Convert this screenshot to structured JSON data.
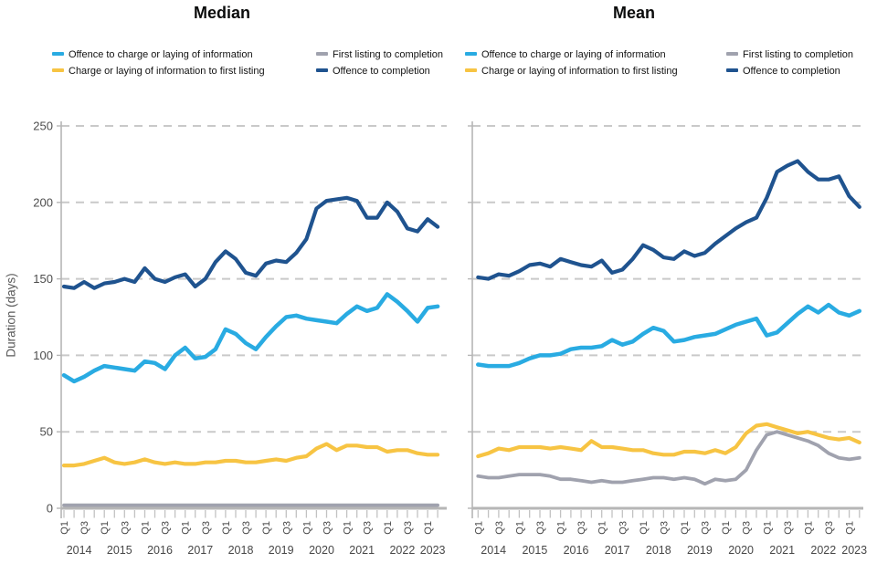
{
  "titles": {
    "left": "Median",
    "right": "Mean"
  },
  "y_axis": {
    "label": "Duration (days)",
    "ticks": [
      0,
      50,
      100,
      150,
      200,
      250
    ],
    "min": 0,
    "max": 250
  },
  "x_axis": {
    "years": [
      "2014",
      "2015",
      "2016",
      "2017",
      "2018",
      "2019",
      "2020",
      "2021",
      "2022",
      "2023"
    ],
    "quarter_tick_labels": [
      "Q1",
      "Q3"
    ],
    "n_points": 38,
    "start": "2014 Q1",
    "end": "2023 Q2"
  },
  "legend": {
    "items": [
      {
        "label": "Offence to charge or laying of information",
        "color": "#29abe2"
      },
      {
        "label": "Charge or laying of information to first listing",
        "color": "#f7c443"
      },
      {
        "label": "First listing to completion",
        "color": "#a0a2ae"
      },
      {
        "label": "Offence to completion",
        "color": "#1f538f"
      }
    ]
  },
  "colors": {
    "gridline": "#c9c9c9",
    "axis": "#b6b6b6",
    "tick": "#c2c2c2",
    "title_text": "#0b0c0c",
    "tick_text": "#474747"
  },
  "chart_data": [
    {
      "panel": "Median",
      "type": "line",
      "ylabel": "Duration (days)",
      "ylim": [
        0,
        250
      ],
      "x": "Quarterly, 2014 Q1 to 2023 Q2",
      "series": [
        {
          "name": "Offence to charge or laying of information",
          "color": "#29abe2",
          "values": [
            87,
            83,
            86,
            90,
            93,
            92,
            91,
            90,
            96,
            95,
            91,
            100,
            105,
            98,
            99,
            104,
            117,
            114,
            108,
            104,
            112,
            119,
            125,
            126,
            124,
            123,
            122,
            121,
            127,
            132,
            129,
            131,
            140,
            135,
            129,
            122,
            131,
            132
          ]
        },
        {
          "name": "Charge or laying of information to first listing",
          "color": "#f7c443",
          "values": [
            28,
            28,
            29,
            31,
            33,
            30,
            29,
            30,
            32,
            30,
            29,
            30,
            29,
            29,
            30,
            30,
            31,
            31,
            30,
            30,
            31,
            32,
            31,
            33,
            34,
            39,
            42,
            38,
            41,
            41,
            40,
            40,
            37,
            38,
            38,
            36,
            35,
            35
          ]
        },
        {
          "name": "First listing to completion",
          "color": "#a0a2ae",
          "values": [
            2,
            2,
            2,
            2,
            2,
            2,
            2,
            2,
            2,
            2,
            2,
            2,
            2,
            2,
            2,
            2,
            2,
            2,
            2,
            2,
            2,
            2,
            2,
            2,
            2,
            2,
            2,
            2,
            2,
            2,
            2,
            2,
            2,
            2,
            2,
            2,
            2,
            2
          ]
        },
        {
          "name": "Offence to completion",
          "color": "#1f538f",
          "values": [
            145,
            144,
            148,
            144,
            147,
            148,
            150,
            148,
            157,
            150,
            148,
            151,
            153,
            145,
            150,
            161,
            168,
            163,
            154,
            152,
            160,
            162,
            161,
            167,
            176,
            196,
            201,
            202,
            203,
            201,
            190,
            190,
            200,
            194,
            183,
            181,
            189,
            184
          ]
        }
      ]
    },
    {
      "panel": "Mean",
      "type": "line",
      "ylabel": "Duration (days)",
      "ylim": [
        0,
        250
      ],
      "x": "Quarterly, 2014 Q1 to 2023 Q2",
      "series": [
        {
          "name": "Offence to charge or laying of information",
          "color": "#29abe2",
          "values": [
            94,
            93,
            93,
            93,
            95,
            98,
            100,
            100,
            101,
            104,
            105,
            105,
            106,
            110,
            107,
            109,
            114,
            118,
            116,
            109,
            110,
            112,
            113,
            114,
            117,
            120,
            122,
            124,
            113,
            115,
            121,
            127,
            132,
            128,
            133,
            128,
            126,
            129
          ]
        },
        {
          "name": "Charge or laying of information to first listing",
          "color": "#f7c443",
          "values": [
            34,
            36,
            39,
            38,
            40,
            40,
            40,
            39,
            40,
            39,
            38,
            44,
            40,
            40,
            39,
            38,
            38,
            36,
            35,
            35,
            37,
            37,
            36,
            38,
            36,
            40,
            49,
            54,
            55,
            53,
            51,
            49,
            50,
            48,
            46,
            45,
            46,
            43
          ]
        },
        {
          "name": "First listing to completion",
          "color": "#a0a2ae",
          "values": [
            21,
            20,
            20,
            21,
            22,
            22,
            22,
            21,
            19,
            19,
            18,
            17,
            18,
            17,
            17,
            18,
            19,
            20,
            20,
            19,
            20,
            19,
            16,
            19,
            18,
            19,
            25,
            38,
            48,
            50,
            48,
            46,
            44,
            41,
            36,
            33,
            32,
            33
          ]
        },
        {
          "name": "Offence to completion",
          "color": "#1f538f",
          "values": [
            151,
            150,
            153,
            152,
            155,
            159,
            160,
            158,
            163,
            161,
            159,
            158,
            162,
            154,
            156,
            163,
            172,
            169,
            164,
            163,
            168,
            165,
            167,
            173,
            178,
            183,
            187,
            190,
            203,
            220,
            224,
            227,
            220,
            215,
            215,
            217,
            204,
            197
          ]
        }
      ]
    }
  ]
}
